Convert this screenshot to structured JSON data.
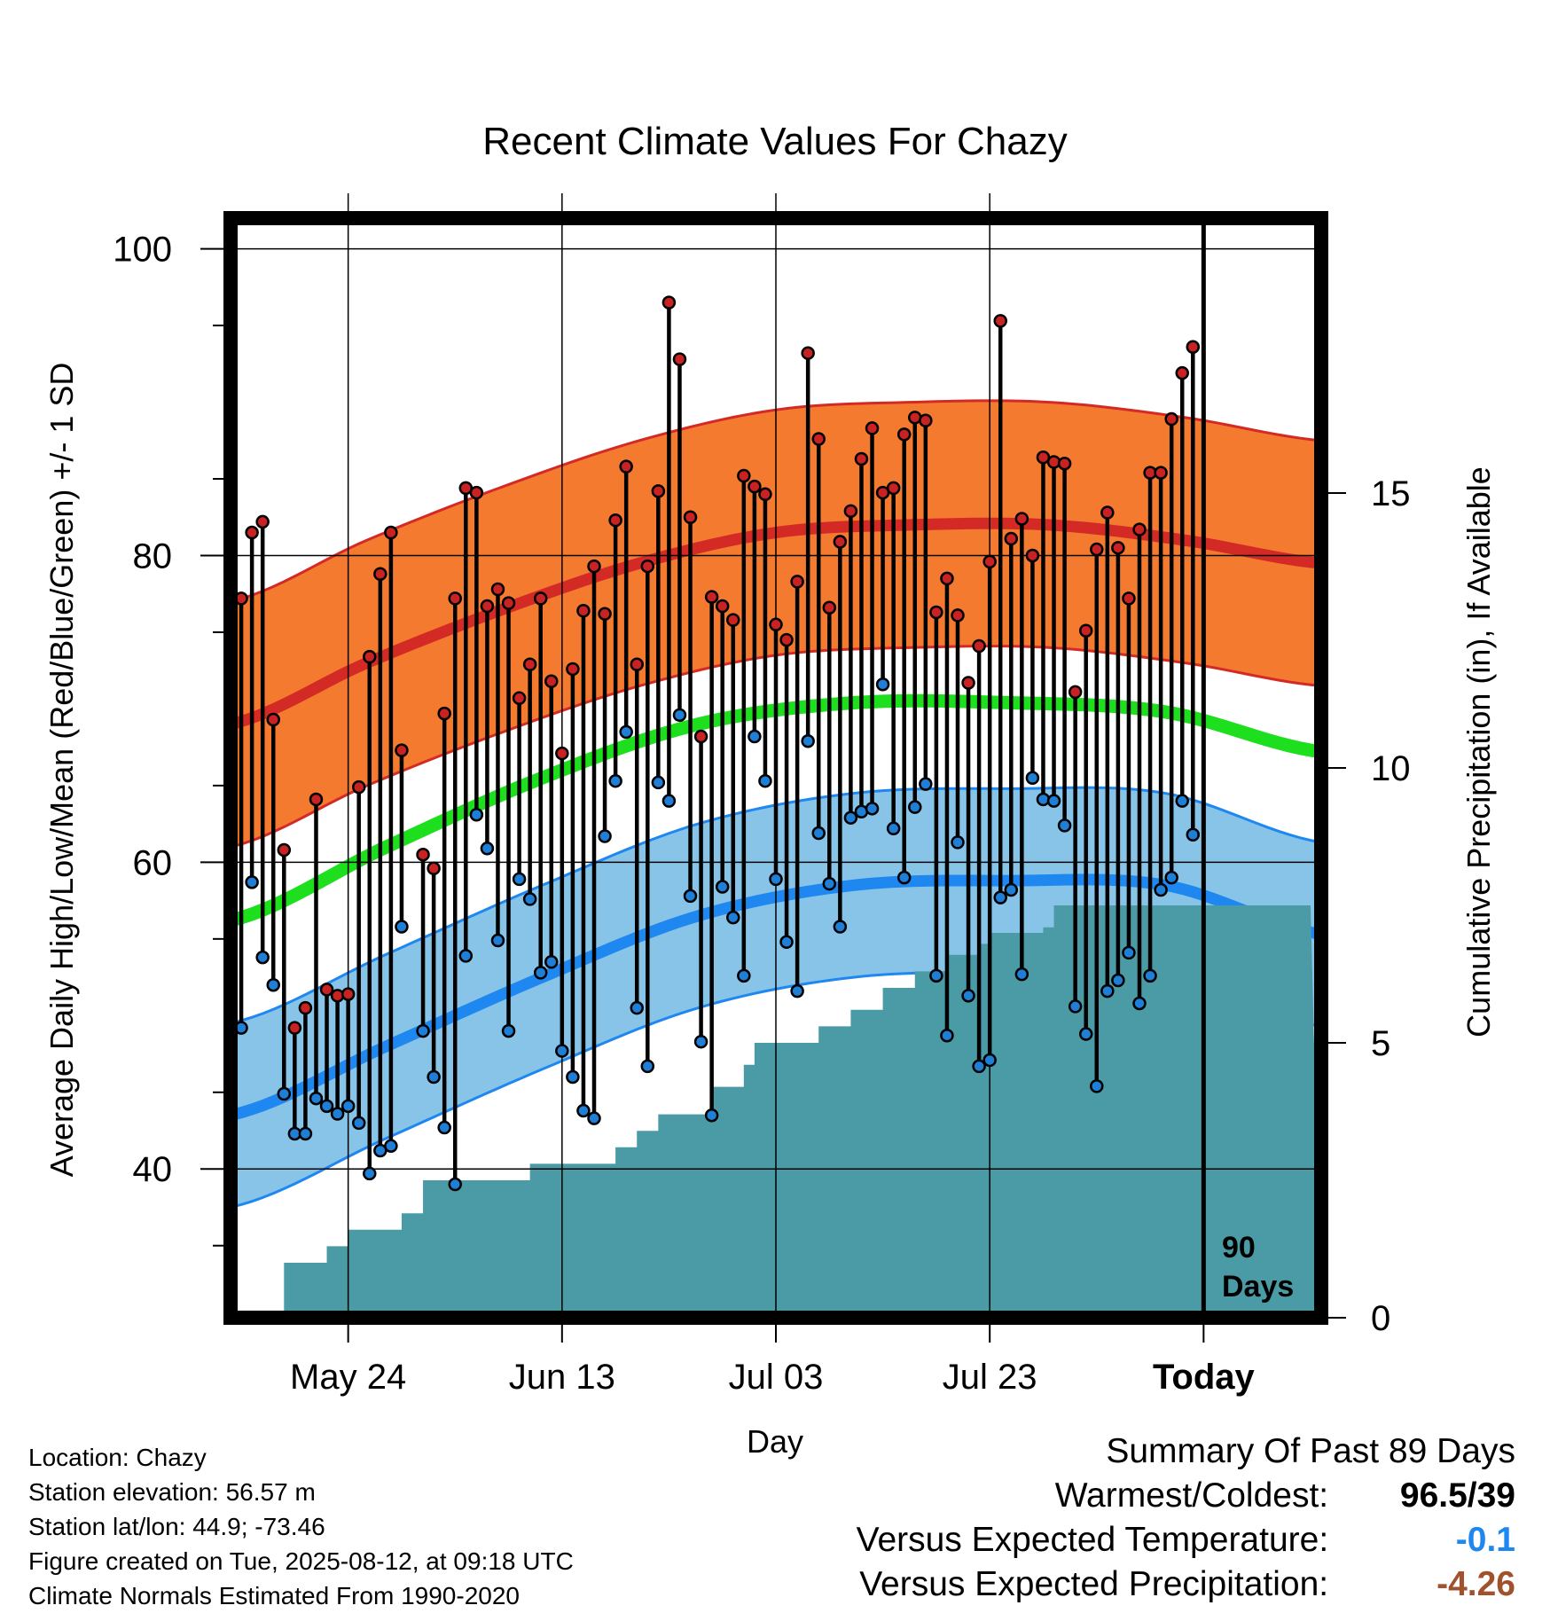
{
  "chart_data": {
    "type": "line",
    "title": "Recent Climate Values For Chazy",
    "xlabel": "Day",
    "ylabel_left": "Average Daily High/Low/Mean (Red/Blue/Green) +/- 1 SD",
    "ylabel_right": "Cumulative Precipitation (in), If Available",
    "x_tick_labels": [
      "May 24",
      "Jun 13",
      "Jul 03",
      "Jul 23",
      "Today"
    ],
    "y_left_ticks": [
      "100",
      "80",
      "60",
      "40"
    ],
    "y_right_ticks": [
      "15",
      "10",
      "5",
      "0"
    ],
    "ylim_left": [
      30.3,
      102
    ],
    "ylim_right": [
      0,
      20
    ],
    "xlim": [
      -1,
      101
    ],
    "today_index": 90,
    "today_label": [
      "90",
      "Days"
    ],
    "colors": {
      "high_band": "#f47a30",
      "high_line": "#d42a26",
      "mean_line": "#1ddf1d",
      "low_band": "#88c4e8",
      "low_line": "#1e88f0",
      "precip": "#4a9ba5",
      "high_dot": "#c82222",
      "low_dot": "#1f7fd6"
    },
    "normal_high": [
      69.0,
      73.0,
      76.5,
      79.5,
      81.5,
      82.0,
      82.0,
      81.0,
      79.5
    ],
    "normal_high_sd": 8,
    "normal_mean": [
      56.2,
      61.0,
      65.5,
      69.0,
      70.4,
      70.4,
      69.8,
      67.2
    ],
    "normal_low": [
      43.5,
      48.0,
      52.5,
      56.5,
      58.5,
      58.8,
      58.5,
      55.3
    ],
    "normal_low_sd": 6,
    "daily": [
      {
        "day": 0,
        "high": 77.2,
        "low": 49.2
      },
      {
        "day": 1,
        "high": 81.5,
        "low": 58.7
      },
      {
        "day": 2,
        "high": 82.2,
        "low": 53.8
      },
      {
        "day": 3,
        "high": 69.3,
        "low": 52.0
      },
      {
        "day": 4,
        "high": 60.8,
        "low": 44.9
      },
      {
        "day": 5,
        "high": 49.2,
        "low": 42.3
      },
      {
        "day": 6,
        "high": 50.5,
        "low": 42.3
      },
      {
        "day": 7,
        "high": 64.1,
        "low": 44.6
      },
      {
        "day": 8,
        "high": 51.7,
        "low": 44.1
      },
      {
        "day": 9,
        "high": 51.3,
        "low": 43.6
      },
      {
        "day": 10,
        "high": 51.4,
        "low": 44.1
      },
      {
        "day": 11,
        "high": 64.9,
        "low": 43.0
      },
      {
        "day": 12,
        "high": 73.4,
        "low": 39.7
      },
      {
        "day": 13,
        "high": 78.8,
        "low": 41.2
      },
      {
        "day": 14,
        "high": 81.5,
        "low": 41.5
      },
      {
        "day": 15,
        "high": 67.3,
        "low": 55.8
      },
      {
        "day": 17,
        "high": 60.5,
        "low": 49.0
      },
      {
        "day": 18,
        "high": 59.6,
        "low": 46.0
      },
      {
        "day": 19,
        "high": 69.7,
        "low": 42.7
      },
      {
        "day": 20,
        "high": 77.2,
        "low": 39.0
      },
      {
        "day": 21,
        "high": 84.4,
        "low": 53.9
      },
      {
        "day": 22,
        "high": 84.1,
        "low": 63.1
      },
      {
        "day": 23,
        "high": 76.7,
        "low": 60.9
      },
      {
        "day": 24,
        "high": 77.8,
        "low": 54.9
      },
      {
        "day": 25,
        "high": 76.9,
        "low": 49.0
      },
      {
        "day": 26,
        "high": 70.7,
        "low": 58.9
      },
      {
        "day": 27,
        "high": 72.9,
        "low": 57.6
      },
      {
        "day": 28,
        "high": 77.2,
        "low": 52.8
      },
      {
        "day": 29,
        "high": 71.8,
        "low": 53.5
      },
      {
        "day": 30,
        "high": 67.1,
        "low": 47.7
      },
      {
        "day": 31,
        "high": 72.6,
        "low": 46.0
      },
      {
        "day": 32,
        "high": 76.4,
        "low": 43.8
      },
      {
        "day": 33,
        "high": 79.3,
        "low": 43.3
      },
      {
        "day": 34,
        "high": 76.2,
        "low": 61.7
      },
      {
        "day": 35,
        "high": 82.3,
        "low": 65.3
      },
      {
        "day": 36,
        "high": 85.8,
        "low": 68.5
      },
      {
        "day": 37,
        "high": 72.9,
        "low": 50.5
      },
      {
        "day": 38,
        "high": 79.3,
        "low": 46.7
      },
      {
        "day": 39,
        "high": 84.2,
        "low": 65.2
      },
      {
        "day": 40,
        "high": 96.5,
        "low": 64.0
      },
      {
        "day": 41,
        "high": 92.8,
        "low": 69.6
      },
      {
        "day": 42,
        "high": 82.5,
        "low": 57.8
      },
      {
        "day": 43,
        "high": 68.2,
        "low": 48.3
      },
      {
        "day": 44,
        "high": 77.3,
        "low": 43.5
      },
      {
        "day": 45,
        "high": 76.7,
        "low": 58.4
      },
      {
        "day": 46,
        "high": 75.8,
        "low": 56.4
      },
      {
        "day": 47,
        "high": 85.2,
        "low": 52.6
      },
      {
        "day": 48,
        "high": 84.5,
        "low": 68.2
      },
      {
        "day": 49,
        "high": 84.0,
        "low": 65.3
      },
      {
        "day": 50,
        "high": 75.5,
        "low": 58.9
      },
      {
        "day": 51,
        "high": 74.5,
        "low": 54.8
      },
      {
        "day": 52,
        "high": 78.3,
        "low": 51.6
      },
      {
        "day": 53,
        "high": 93.2,
        "low": 67.9
      },
      {
        "day": 54,
        "high": 87.6,
        "low": 61.9
      },
      {
        "day": 55,
        "high": 76.6,
        "low": 58.6
      },
      {
        "day": 56,
        "high": 80.9,
        "low": 55.8
      },
      {
        "day": 57,
        "high": 82.9,
        "low": 62.9
      },
      {
        "day": 58,
        "high": 86.3,
        "low": 63.3
      },
      {
        "day": 59,
        "high": 88.3,
        "low": 63.5
      },
      {
        "day": 60,
        "high": 84.1,
        "low": 71.6
      },
      {
        "day": 61,
        "high": 84.4,
        "low": 62.2
      },
      {
        "day": 62,
        "high": 87.9,
        "low": 59.0
      },
      {
        "day": 63,
        "high": 89.0,
        "low": 63.6
      },
      {
        "day": 64,
        "high": 88.8,
        "low": 65.1
      },
      {
        "day": 65,
        "high": 76.3,
        "low": 52.6
      },
      {
        "day": 66,
        "high": 78.5,
        "low": 48.7
      },
      {
        "day": 67,
        "high": 76.1,
        "low": 61.3
      },
      {
        "day": 68,
        "high": 71.7,
        "low": 51.3
      },
      {
        "day": 69,
        "high": 74.1,
        "low": 46.7
      },
      {
        "day": 70,
        "high": 79.6,
        "low": 47.1
      },
      {
        "day": 71,
        "high": 95.3,
        "low": 57.7
      },
      {
        "day": 72,
        "high": 81.1,
        "low": 58.2
      },
      {
        "day": 73,
        "high": 82.4,
        "low": 52.7
      },
      {
        "day": 74,
        "high": 80.0,
        "low": 65.5
      },
      {
        "day": 75,
        "high": 86.4,
        "low": 64.1
      },
      {
        "day": 76,
        "high": 86.1,
        "low": 64.0
      },
      {
        "day": 77,
        "high": 86.0,
        "low": 62.4
      },
      {
        "day": 78,
        "high": 71.1,
        "low": 50.6
      },
      {
        "day": 79,
        "high": 75.1,
        "low": 48.8
      },
      {
        "day": 80,
        "high": 80.4,
        "low": 45.4
      },
      {
        "day": 81,
        "high": 82.8,
        "low": 51.6
      },
      {
        "day": 82,
        "high": 80.5,
        "low": 52.3
      },
      {
        "day": 83,
        "high": 77.2,
        "low": 54.1
      },
      {
        "day": 84,
        "high": 81.7,
        "low": 50.8
      },
      {
        "day": 85,
        "high": 85.4,
        "low": 52.6
      },
      {
        "day": 86,
        "high": 85.4,
        "low": 58.2
      },
      {
        "day": 87,
        "high": 88.9,
        "low": 59.0
      },
      {
        "day": 88,
        "high": 91.9,
        "low": 64.0
      },
      {
        "day": 89,
        "high": 93.6,
        "low": 61.8
      }
    ],
    "precip_steps": [
      [
        3,
        0.0
      ],
      [
        4,
        1.0
      ],
      [
        8,
        1.3
      ],
      [
        10,
        1.6
      ],
      [
        15,
        1.9
      ],
      [
        17,
        2.5
      ],
      [
        27,
        2.8
      ],
      [
        35,
        3.1
      ],
      [
        37,
        3.4
      ],
      [
        39,
        3.7
      ],
      [
        44,
        4.2
      ],
      [
        47,
        4.6
      ],
      [
        48,
        5.0
      ],
      [
        54,
        5.3
      ],
      [
        57,
        5.6
      ],
      [
        60,
        6.0
      ],
      [
        63,
        6.3
      ],
      [
        66,
        6.6
      ],
      [
        69,
        6.8
      ],
      [
        70,
        7.0
      ],
      [
        75,
        7.1
      ],
      [
        76,
        7.5
      ],
      [
        90,
        7.5
      ],
      [
        100,
        7.5
      ]
    ]
  },
  "station_info": {
    "location": "Location: Chazy",
    "elevation": "Station elevation: 56.57 m",
    "latlon": "Station lat/lon: 44.9; -73.46",
    "created": "Figure created on Tue, 2025-08-12, at 09:18 UTC",
    "normals": "Climate Normals Estimated From 1990-2020"
  },
  "summary": {
    "heading": "Summary Of Past 89 Days",
    "warm_cold_label": "Warmest/Coldest:",
    "warm_cold_value": "96.5/39",
    "temp_label": "Versus Expected Temperature:",
    "temp_value": "-0.1",
    "temp_color": "#1e88f0",
    "precip_label": "Versus Expected Precipitation:",
    "precip_value": "-4.26",
    "precip_color": "#a0522d"
  }
}
